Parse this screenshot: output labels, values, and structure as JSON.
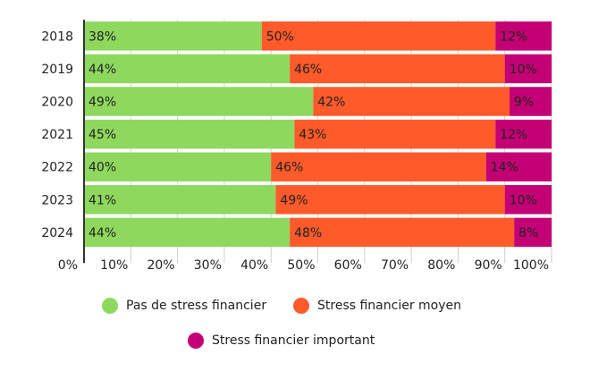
{
  "chart_data": {
    "type": "bar",
    "orientation": "horizontal",
    "stacked": true,
    "categories": [
      "2018",
      "2019",
      "2020",
      "2021",
      "2022",
      "2023",
      "2024"
    ],
    "series": [
      {
        "name": "Pas de stress financier",
        "color": "#8fd85e",
        "values": [
          38,
          44,
          49,
          45,
          40,
          41,
          44
        ],
        "labels": [
          "38%",
          "44%",
          "49%",
          "45%",
          "40%",
          "41%",
          "44%"
        ]
      },
      {
        "name": "Stress financier moyen",
        "color": "#ff5a2a",
        "values": [
          50,
          46,
          42,
          43,
          46,
          49,
          48
        ],
        "labels": [
          "50%",
          "46%",
          "42%",
          "43%",
          "46%",
          "49%",
          "48%"
        ]
      },
      {
        "name": "Stress financier important",
        "color": "#c40075",
        "values": [
          12,
          10,
          9,
          12,
          14,
          10,
          8
        ],
        "labels": [
          "12%",
          "10%",
          "9%",
          "12%",
          "14%",
          "10%",
          "8%"
        ]
      }
    ],
    "x_ticks": [
      "0%",
      "10%",
      "20%",
      "30%",
      "40%",
      "50%",
      "60%",
      "70%",
      "80%",
      "90%",
      "100%"
    ],
    "xlim": [
      0,
      100
    ],
    "grid": true,
    "legend_position": "bottom",
    "title": "",
    "xlabel": "",
    "ylabel": ""
  }
}
